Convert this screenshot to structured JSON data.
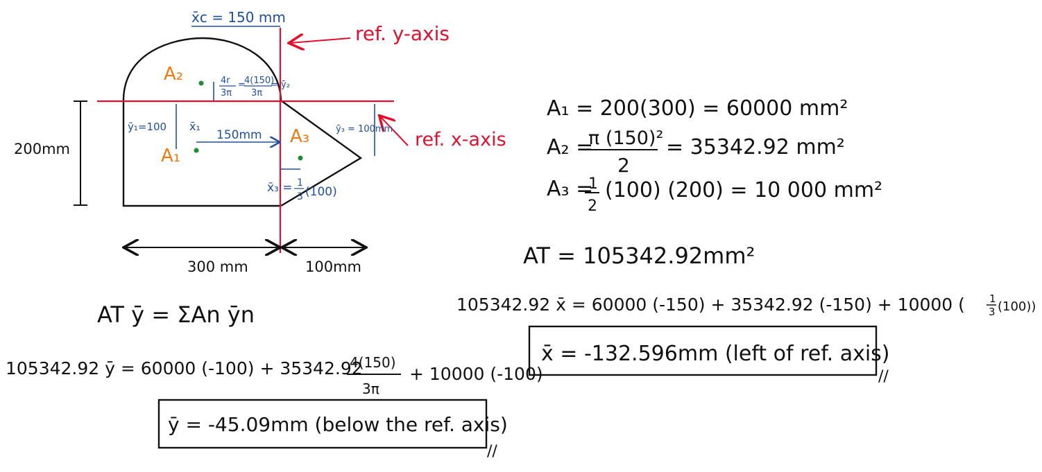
{
  "colors": {
    "ink": "#111111",
    "red": "#e0102e",
    "blue": "#1f4fa0",
    "orange": "#f07a10",
    "green": "#1f8a3a"
  },
  "diagram": {
    "xc_label": "x̄c = 150 mm",
    "ref_y_axis": "ref. y-axis",
    "ref_x_axis": "ref. x-axis",
    "a2_label": "A₂",
    "a1_label": "A₁",
    "a3_label": "A₃",
    "ybar2_4r": "4r",
    "ybar2_3pi": "3π",
    "ybar2_eq": "=",
    "ybar2_num": "4(150)",
    "ybar2_den": "3π",
    "ybar2_tail": "= ȳ₂",
    "ybar1_label": "ȳ₁=100",
    "xbar1_label": "x̄₁",
    "dim_150": "150mm",
    "ybar3_label": "ȳ₃ = 100mm",
    "xbar3_label": "x̄₃ =",
    "xbar3_frac_num": "1",
    "xbar3_frac_den": "3",
    "xbar3_tail": "(100)",
    "dim_200": "200mm",
    "dim_300": "300 mm",
    "dim_100": "100mm"
  },
  "equations": {
    "a1": "A₁ = 200(300) = 60000 mm²",
    "a2_lhs": "A₂ =",
    "a2_num": "π (150)²",
    "a2_den": "2",
    "a2_rhs": "= 35342.92 mm²",
    "a3_lhs": "A₃ =",
    "a3_num": "1",
    "a3_den": "2",
    "a3_rhs": "(100) (200) = 10 000 mm²",
    "at": "AT = 105342.92mm²",
    "x_eq_lhs": "105342.92 x̄ = 60000 (-150) + 35342.92 (-150) + 10000 (",
    "x_eq_frac_num": "1",
    "x_eq_frac_den": "3",
    "x_eq_tail": "(100))",
    "x_result": "x̄ = -132.596mm (left of ref. axis)",
    "aty": "AT ȳ = ΣAn ȳn",
    "y_eq_lhs": "105342.92 ȳ = 60000 (-100) + 35342.92",
    "y_eq_frac_num": "4(150)",
    "y_eq_frac_den": "3π",
    "y_eq_tail": "+ 10000 (-100)",
    "y_result": "ȳ = -45.09mm (below the ref. axis)",
    "mark": "//"
  }
}
